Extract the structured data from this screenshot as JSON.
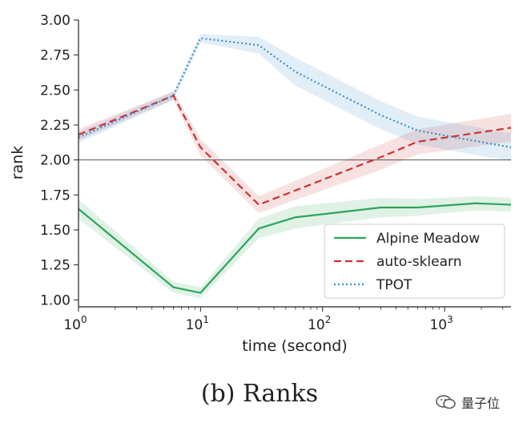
{
  "chart_data": {
    "type": "line",
    "title": "",
    "xlabel": "time (second)",
    "ylabel": "rank",
    "xscale": "log",
    "xlim": [
      1,
      3500
    ],
    "ylim": [
      0.95,
      3.0
    ],
    "x_ticks": [
      {
        "value": 1,
        "base": "10",
        "exp": "0"
      },
      {
        "value": 10,
        "base": "10",
        "exp": "1"
      },
      {
        "value": 100,
        "base": "10",
        "exp": "2"
      },
      {
        "value": 1000,
        "base": "10",
        "exp": "3"
      }
    ],
    "y_ticks": [
      1.0,
      1.25,
      1.5,
      1.75,
      2.0,
      2.25,
      2.5,
      2.75,
      3.0
    ],
    "y_tick_labels": [
      "1.00",
      "1.25",
      "1.50",
      "1.75",
      "2.00",
      "2.25",
      "2.50",
      "2.75",
      "3.00"
    ],
    "reference_line": 2.0,
    "legend_position": "lower-right",
    "series": [
      {
        "name": "Alpine Meadow",
        "color": "#2ca55a",
        "style": "solid",
        "x": [
          1,
          6,
          10,
          30,
          60,
          300,
          600,
          1800,
          3500
        ],
        "y": [
          1.65,
          1.09,
          1.05,
          1.51,
          1.59,
          1.66,
          1.66,
          1.69,
          1.68
        ],
        "band": [
          0.07,
          0.04,
          0.04,
          0.07,
          0.08,
          0.07,
          0.06,
          0.05,
          0.05
        ]
      },
      {
        "name": "auto-sklearn",
        "color": "#cc3333",
        "style": "dashed",
        "x": [
          1,
          6,
          10,
          30,
          300,
          600,
          3500
        ],
        "y": [
          2.18,
          2.46,
          2.09,
          1.68,
          2.02,
          2.13,
          2.23
        ],
        "band": [
          0.04,
          0.03,
          0.06,
          0.06,
          0.09,
          0.09,
          0.1
        ]
      },
      {
        "name": "TPOT",
        "color": "#3a8fc8",
        "style": "dotted",
        "x": [
          1,
          6,
          10,
          30,
          60,
          300,
          600,
          3500
        ],
        "y": [
          2.16,
          2.46,
          2.87,
          2.82,
          2.63,
          2.32,
          2.21,
          2.09
        ],
        "band": [
          0.04,
          0.03,
          0.03,
          0.06,
          0.1,
          0.1,
          0.1,
          0.1
        ]
      }
    ]
  },
  "caption": "(b)  Ranks",
  "watermark": {
    "text": "量子位",
    "icon": "wechat-icon"
  }
}
